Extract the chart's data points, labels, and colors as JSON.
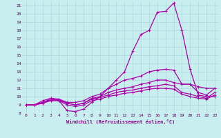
{
  "xlabel": "Windchill (Refroidissement éolien,°C)",
  "xlim": [
    -0.5,
    23.5
  ],
  "ylim": [
    8,
    21.5
  ],
  "xticks": [
    0,
    1,
    2,
    3,
    4,
    5,
    6,
    7,
    8,
    9,
    10,
    11,
    12,
    13,
    14,
    15,
    16,
    17,
    18,
    19,
    20,
    21,
    22,
    23
  ],
  "yticks": [
    8,
    9,
    10,
    11,
    12,
    13,
    14,
    15,
    16,
    17,
    18,
    19,
    20,
    21
  ],
  "background_color": "#c8eef0",
  "grid_color": "#b0dde0",
  "line_color": "#aa00aa",
  "lines": [
    [
      9.0,
      9.0,
      9.2,
      9.8,
      9.5,
      8.3,
      8.2,
      8.5,
      9.3,
      10.0,
      11.0,
      12.0,
      13.0,
      15.5,
      17.5,
      18.0,
      20.2,
      20.3,
      21.3,
      18.0,
      13.3,
      10.2,
      10.0,
      10.0
    ],
    [
      9.0,
      9.0,
      9.5,
      9.8,
      9.7,
      9.3,
      9.3,
      9.5,
      10.0,
      10.3,
      11.0,
      11.5,
      12.0,
      12.2,
      12.5,
      13.0,
      13.2,
      13.3,
      13.2,
      11.5,
      11.5,
      11.2,
      11.0,
      11.0
    ],
    [
      9.0,
      9.0,
      9.3,
      9.6,
      9.6,
      9.2,
      9.0,
      9.2,
      9.8,
      10.0,
      10.5,
      10.8,
      11.0,
      11.2,
      11.5,
      11.7,
      12.0,
      12.0,
      11.7,
      11.5,
      11.5,
      10.5,
      10.2,
      11.0
    ],
    [
      9.0,
      9.0,
      9.3,
      9.6,
      9.6,
      9.2,
      9.0,
      9.2,
      9.7,
      9.9,
      10.2,
      10.5,
      10.7,
      10.8,
      11.0,
      11.2,
      11.3,
      11.5,
      11.3,
      10.5,
      10.3,
      10.0,
      9.8,
      10.5
    ],
    [
      9.0,
      9.0,
      9.2,
      9.5,
      9.5,
      9.0,
      8.8,
      9.0,
      9.5,
      9.7,
      10.0,
      10.2,
      10.4,
      10.5,
      10.7,
      10.9,
      11.0,
      11.0,
      10.9,
      10.3,
      10.0,
      9.8,
      9.7,
      10.2
    ]
  ]
}
